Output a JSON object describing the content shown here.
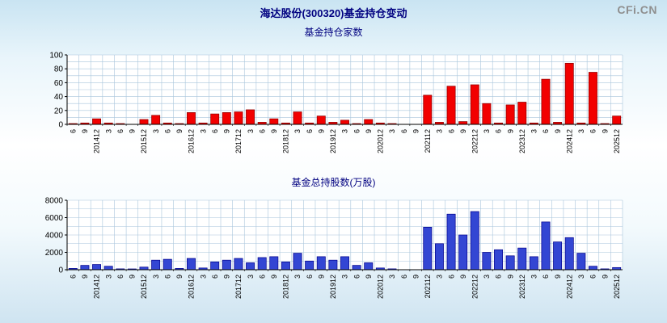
{
  "page": {
    "title": "海达股份(300320)基金持仓变动",
    "logo": "CFi.CN"
  },
  "chart_data": [
    {
      "type": "bar",
      "title": "基金持仓家数",
      "ylabel": "",
      "xlabel": "",
      "ylim": [
        0,
        100
      ],
      "yticks": [
        0,
        20,
        40,
        60,
        80,
        100
      ],
      "ytick_step": 20,
      "grid_step": 10,
      "grid": true,
      "legend": "none",
      "bar_color": "#f20000",
      "bar_border": "#8b0000",
      "grid_color": "#a9c6dc",
      "categories": [
        "6",
        "9",
        "201412",
        "3",
        "6",
        "9",
        "201512",
        "3",
        "6",
        "9",
        "201612",
        "3",
        "6",
        "9",
        "201712",
        "3",
        "6",
        "9",
        "201812",
        "3",
        "6",
        "9",
        "201912",
        "3",
        "6",
        "9",
        "202012",
        "3",
        "6",
        "9",
        "202112",
        "3",
        "6",
        "9",
        "202212",
        "3",
        "6",
        "9",
        "202312",
        "3",
        "6",
        "9",
        "202412",
        "3",
        "6",
        "9",
        "202512"
      ],
      "values": [
        1,
        2,
        8,
        2,
        1,
        0,
        7,
        13,
        2,
        1,
        17,
        2,
        15,
        17,
        18,
        21,
        3,
        8,
        2,
        18,
        2,
        12,
        3,
        6,
        1,
        7,
        2,
        1,
        0,
        0,
        42,
        3,
        55,
        4,
        57,
        30,
        2,
        28,
        32,
        2,
        65,
        3,
        88,
        2,
        75,
        1,
        12
      ]
    },
    {
      "type": "bar",
      "title": "基金总持股数(万股)",
      "ylabel": "",
      "xlabel": "",
      "ylim": [
        0,
        8000
      ],
      "yticks": [
        0,
        2000,
        4000,
        6000,
        8000
      ],
      "ytick_step": 2000,
      "grid_step": 1000,
      "grid": true,
      "legend": "none",
      "bar_color": "#3346d3",
      "bar_border": "#00008b",
      "grid_color": "#a9c6dc",
      "categories": [
        "6",
        "9",
        "201412",
        "3",
        "6",
        "9",
        "201512",
        "3",
        "6",
        "9",
        "201612",
        "3",
        "6",
        "9",
        "201712",
        "3",
        "6",
        "9",
        "201812",
        "3",
        "6",
        "9",
        "201912",
        "3",
        "6",
        "9",
        "202012",
        "3",
        "6",
        "9",
        "202112",
        "3",
        "6",
        "9",
        "202212",
        "3",
        "6",
        "9",
        "202312",
        "3",
        "6",
        "9",
        "202412",
        "3",
        "6",
        "9",
        "202512"
      ],
      "values": [
        150,
        500,
        600,
        400,
        100,
        50,
        300,
        1100,
        1200,
        150,
        1300,
        200,
        900,
        1100,
        1300,
        800,
        1400,
        1500,
        900,
        1900,
        1000,
        1500,
        1100,
        1500,
        500,
        800,
        200,
        100,
        0,
        0,
        4900,
        3000,
        6400,
        4000,
        6700,
        2000,
        2300,
        1600,
        2500,
        1500,
        5500,
        3200,
        3700,
        1900,
        400,
        100,
        250
      ]
    }
  ]
}
